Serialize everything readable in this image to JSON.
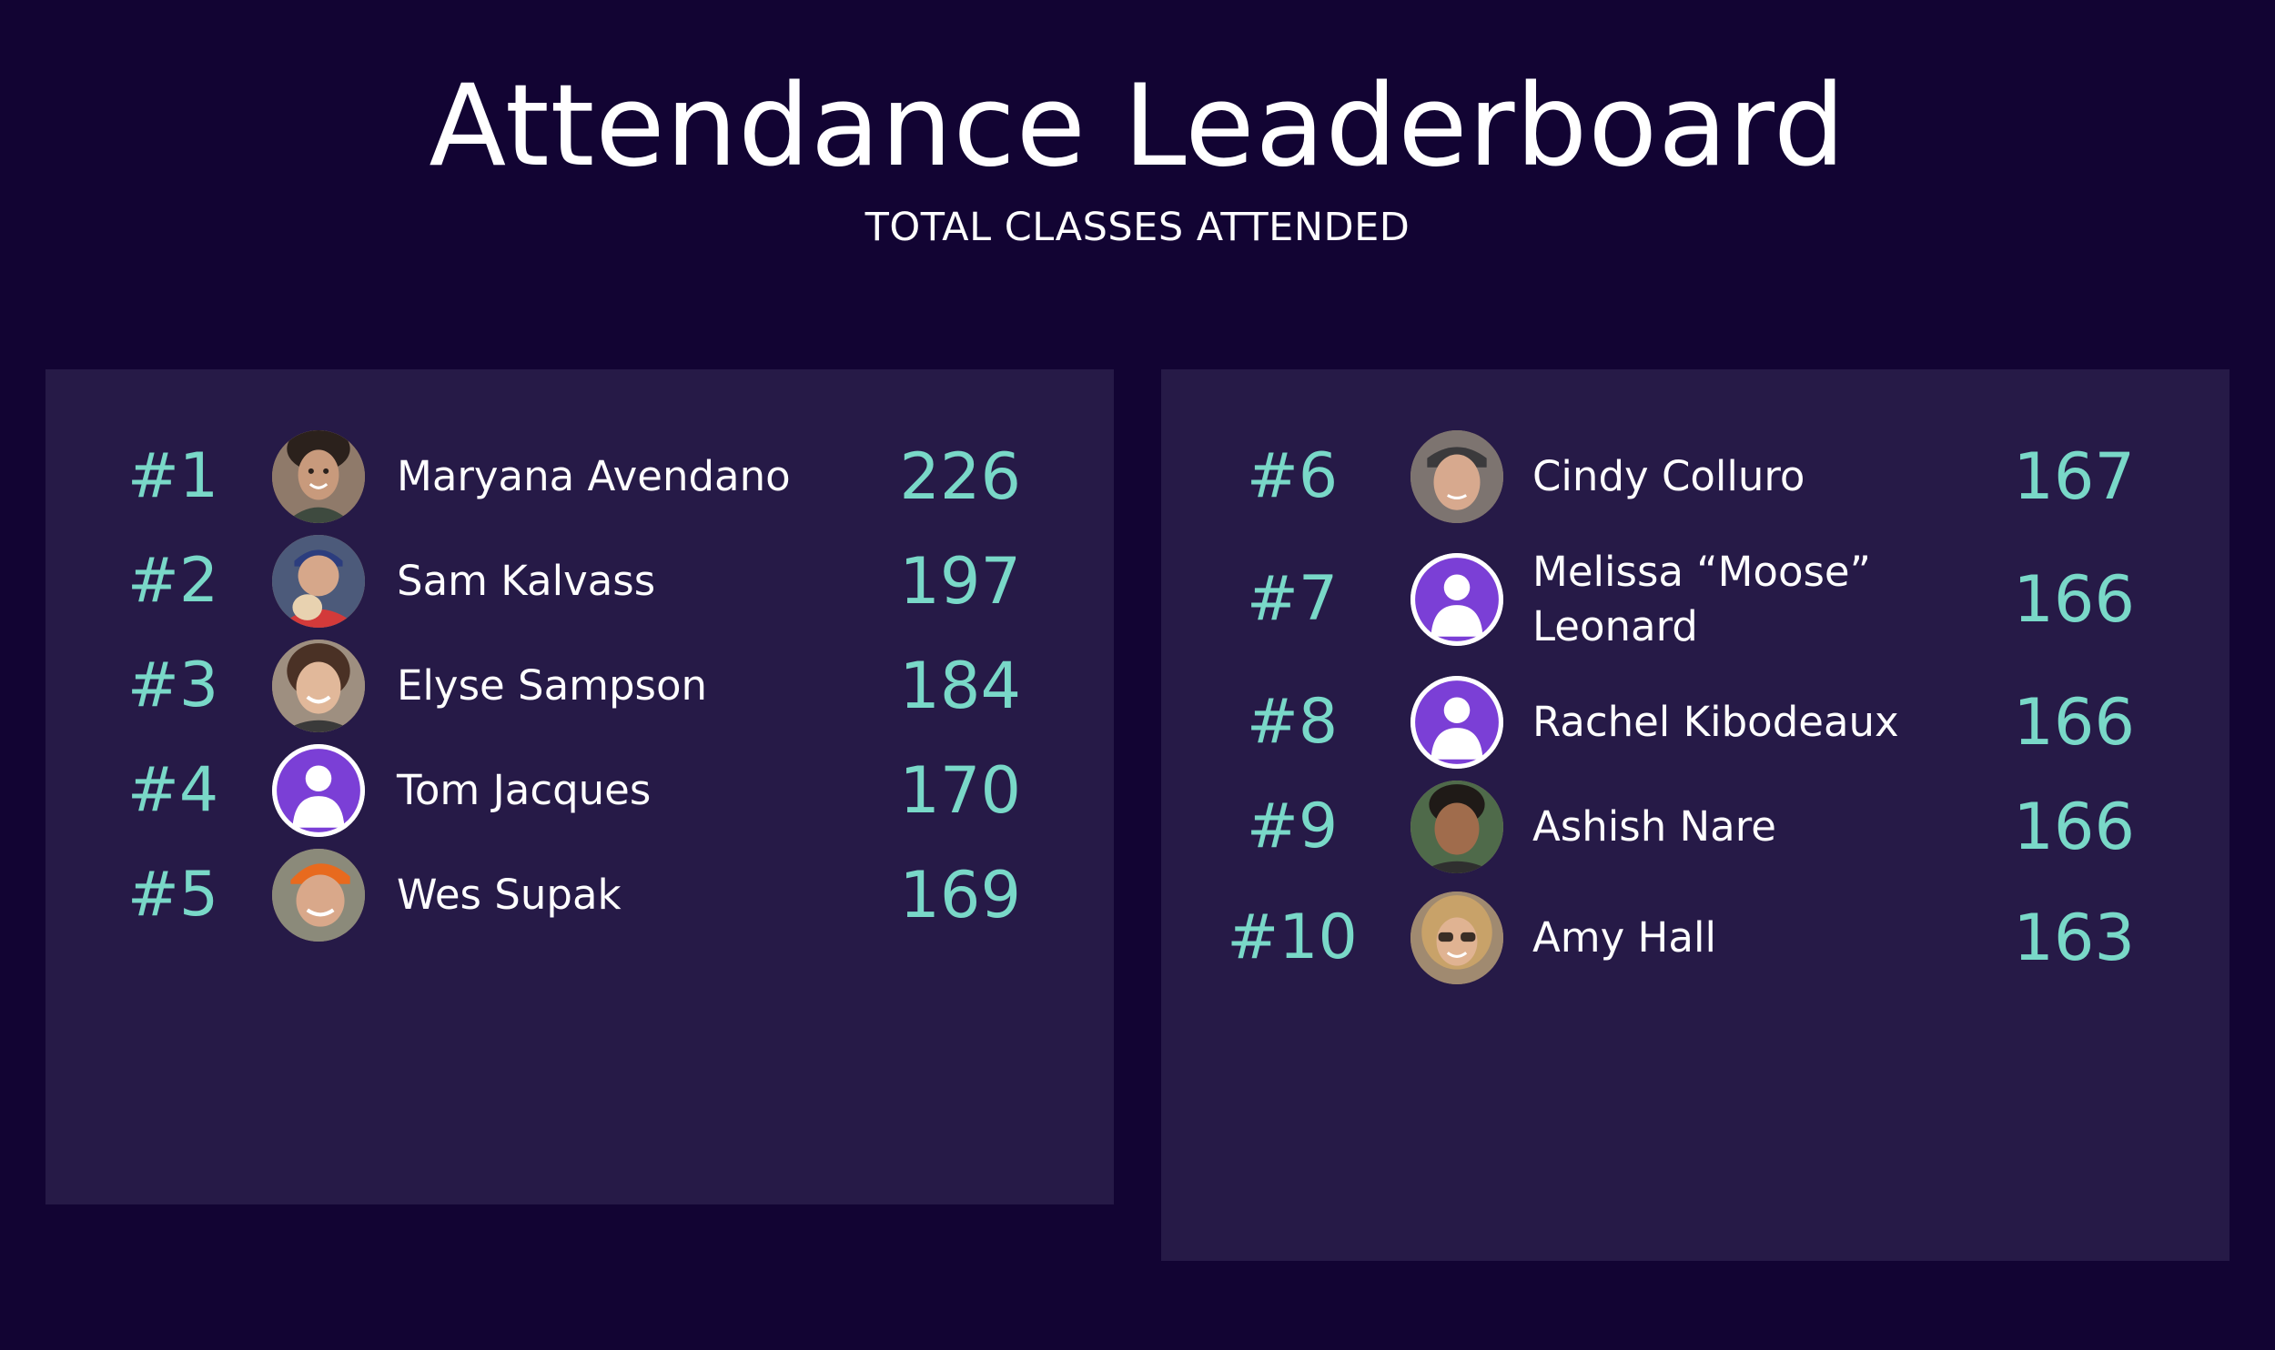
{
  "header": {
    "title": "Attendance Leaderboard",
    "subtitle": "TOTAL CLASSES ATTENDED"
  },
  "colors": {
    "background": "#120433",
    "panel": "#261a47",
    "accent": "#79d8c8",
    "placeholder_avatar": "#7b3fd6"
  },
  "leaderboard": {
    "left": [
      {
        "rank": "#1",
        "name": "Maryana Avendano",
        "score": "226",
        "avatar": "photo-avatar"
      },
      {
        "rank": "#2",
        "name": "Sam Kalvass",
        "score": "197",
        "avatar": "photo-avatar"
      },
      {
        "rank": "#3",
        "name": "Elyse Sampson",
        "score": "184",
        "avatar": "photo-avatar"
      },
      {
        "rank": "#4",
        "name": "Tom Jacques",
        "score": "170",
        "avatar": "default-user-icon"
      },
      {
        "rank": "#5",
        "name": "Wes Supak",
        "score": "169",
        "avatar": "photo-avatar"
      }
    ],
    "right": [
      {
        "rank": "#6",
        "name": "Cindy Colluro",
        "score": "167",
        "avatar": "photo-avatar"
      },
      {
        "rank": "#7",
        "name": "Melissa “Moose” Leonard",
        "score": "166",
        "avatar": "default-user-icon"
      },
      {
        "rank": "#8",
        "name": "Rachel Kibodeaux",
        "score": "166",
        "avatar": "default-user-icon"
      },
      {
        "rank": "#9",
        "name": "Ashish Nare",
        "score": "166",
        "avatar": "photo-avatar"
      },
      {
        "rank": "#10",
        "name": "Amy Hall",
        "score": "163",
        "avatar": "photo-avatar"
      }
    ]
  }
}
